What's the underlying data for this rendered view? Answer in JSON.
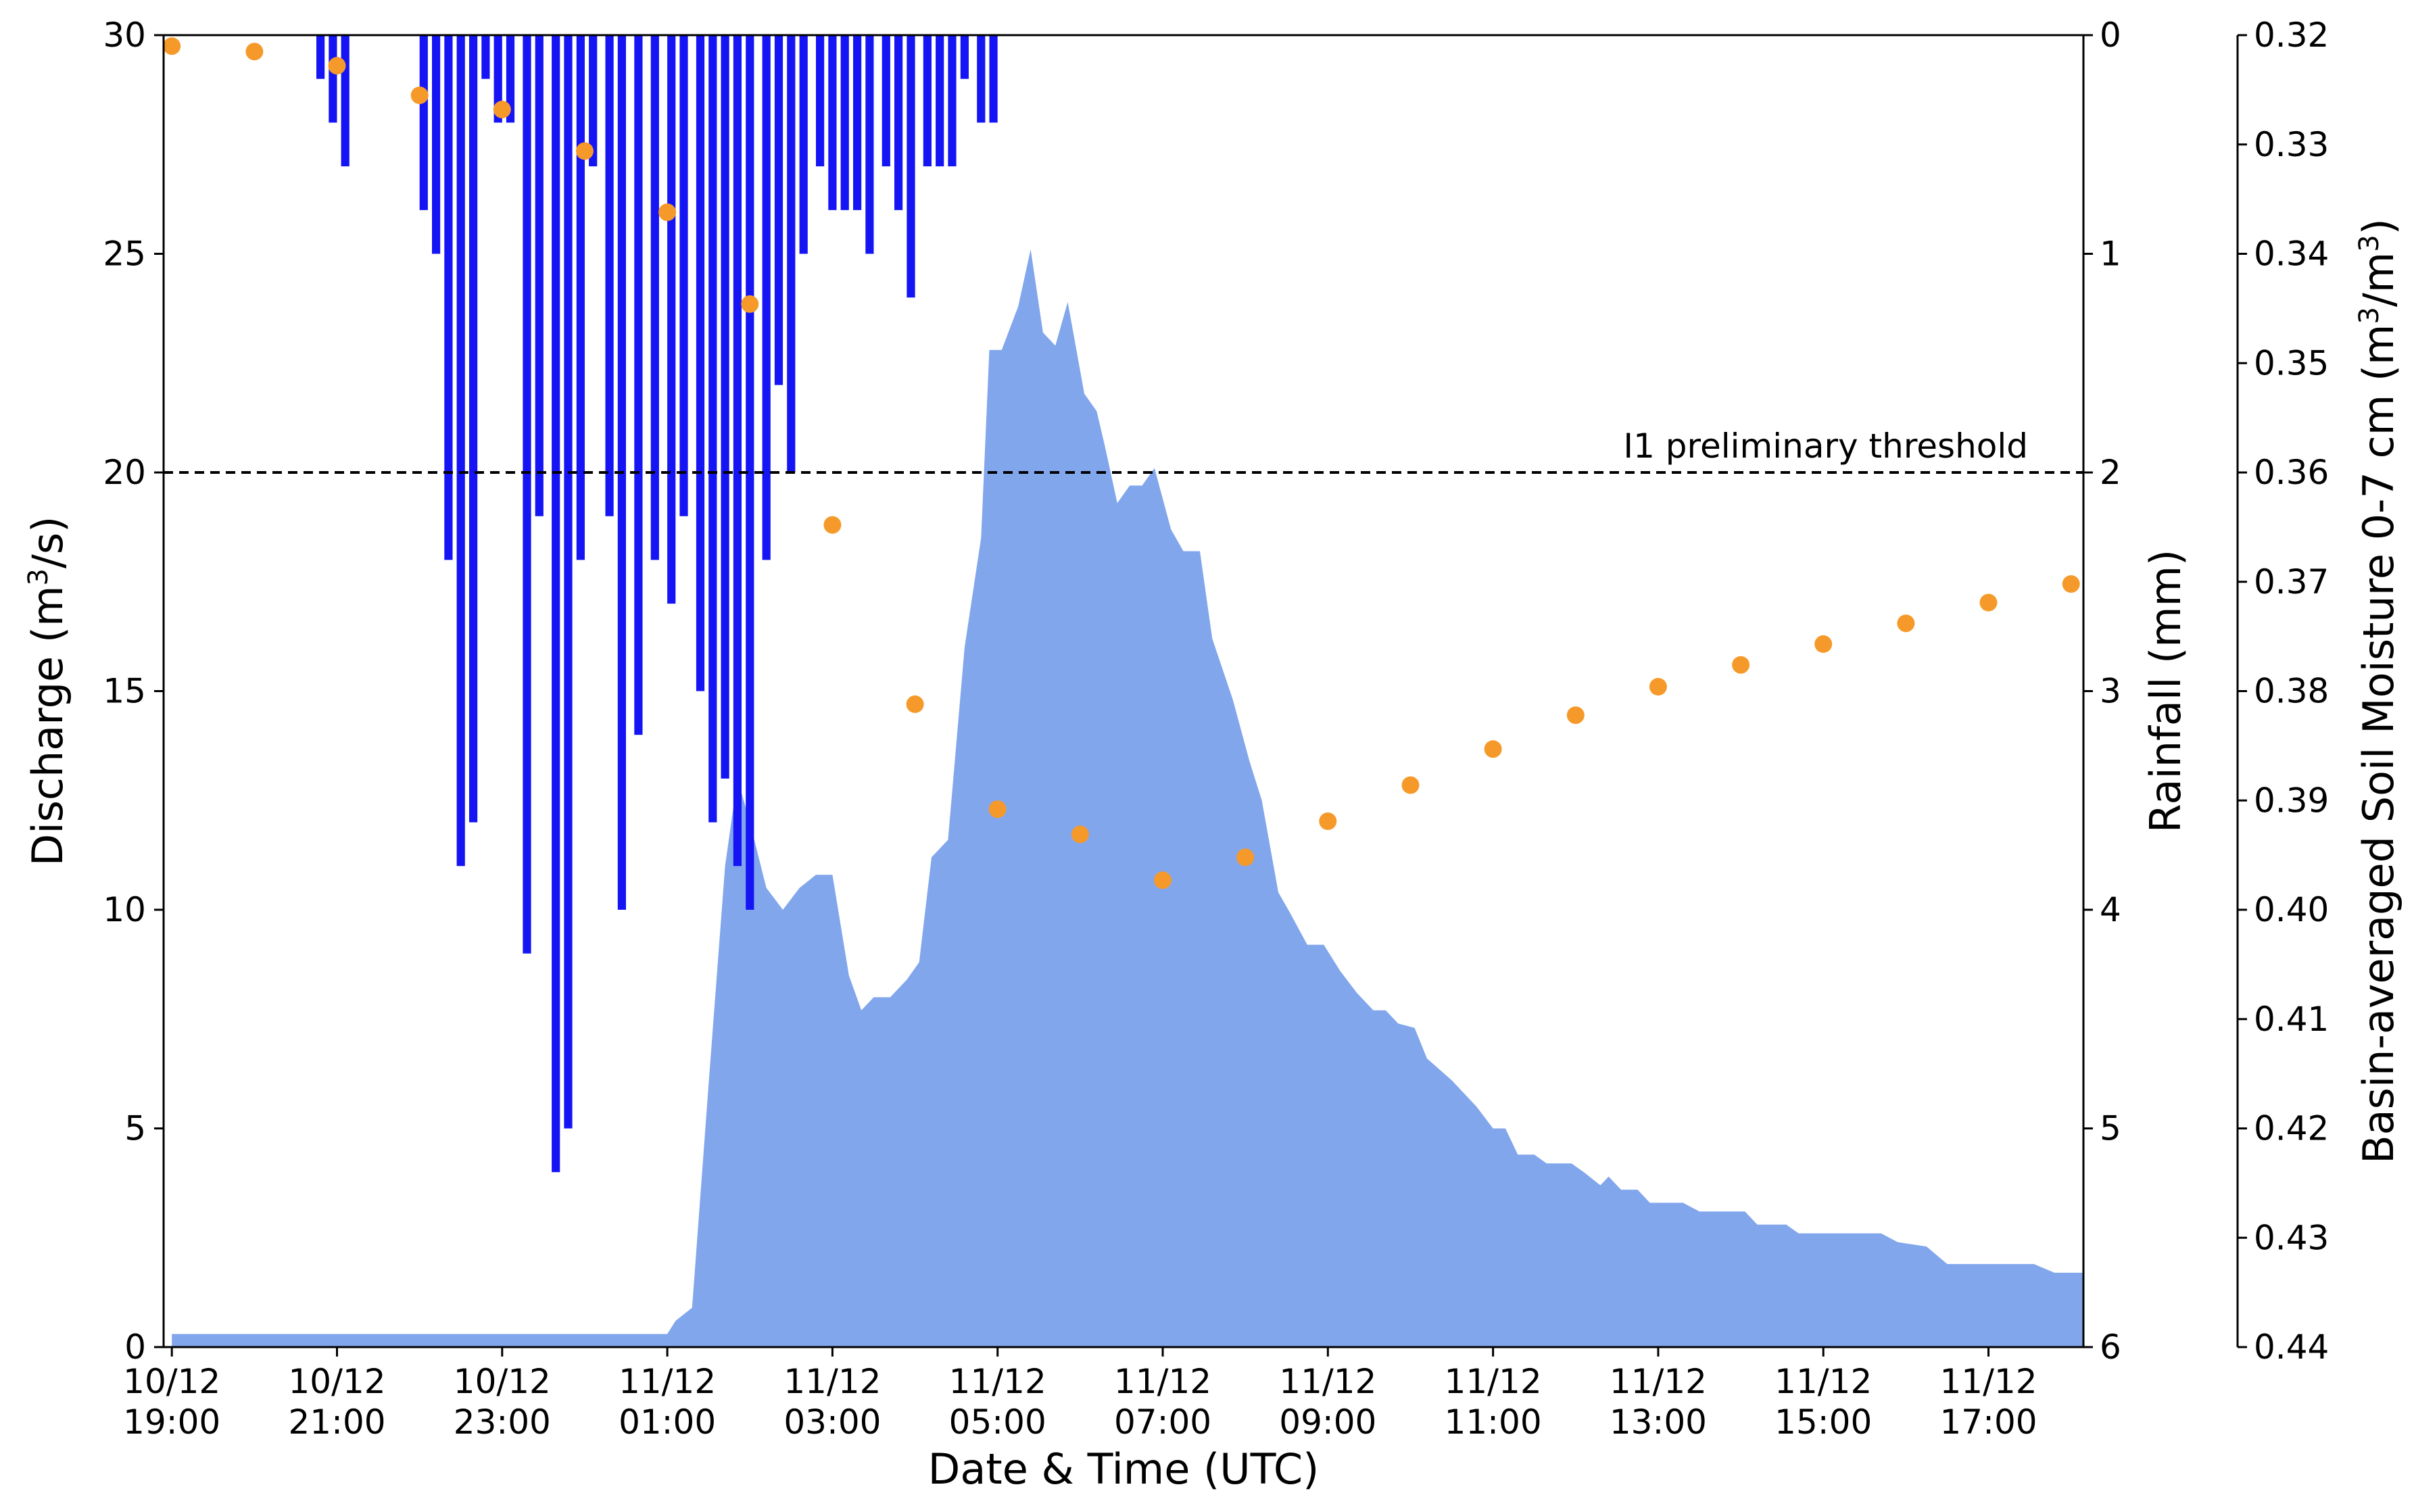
{
  "chart_data": {
    "type": "area",
    "xlabel": "Date & Time (UTC)",
    "x_ticks": [
      {
        "t": 0,
        "label": [
          "10/12",
          "19:00"
        ]
      },
      {
        "t": 2,
        "label": [
          "10/12",
          "21:00"
        ]
      },
      {
        "t": 4,
        "label": [
          "10/12",
          "23:00"
        ]
      },
      {
        "t": 6,
        "label": [
          "11/12",
          "01:00"
        ]
      },
      {
        "t": 8,
        "label": [
          "11/12",
          "03:00"
        ]
      },
      {
        "t": 10,
        "label": [
          "11/12",
          "05:00"
        ]
      },
      {
        "t": 12,
        "label": [
          "11/12",
          "07:00"
        ]
      },
      {
        "t": 14,
        "label": [
          "11/12",
          "09:00"
        ]
      },
      {
        "t": 16,
        "label": [
          "11/12",
          "11:00"
        ]
      },
      {
        "t": 18,
        "label": [
          "11/12",
          "13:00"
        ]
      },
      {
        "t": 20,
        "label": [
          "11/12",
          "15:00"
        ]
      },
      {
        "t": 22,
        "label": [
          "11/12",
          "17:00"
        ]
      }
    ],
    "xlim": [
      -0.1,
      23.15
    ],
    "discharge_axis": {
      "label": "Discharge (m3/s)",
      "label_parts": [
        "Discharge (m",
        "3",
        "/s)"
      ],
      "ylim": [
        0,
        30
      ],
      "ticks": [
        "0",
        "5",
        "10",
        "15",
        "20",
        "25",
        "30"
      ]
    },
    "rainfall_axis": {
      "label": "Rainfall (mm)",
      "ylim": [
        6,
        0
      ],
      "inverted": true,
      "ticks": [
        "0",
        "1",
        "2",
        "3",
        "4",
        "5",
        "6"
      ]
    },
    "soil_moisture_axis": {
      "label": "Basin-averaged Soil Moisture 0-7 cm (m3/m3)",
      "label_parts": [
        "Basin-averaged Soil Moisture 0-7 cm (m",
        "3",
        "/m",
        "3",
        ")"
      ],
      "ylim": [
        0.44,
        0.32
      ],
      "inverted": true,
      "ticks": [
        "0.32",
        "0.33",
        "0.34",
        "0.35",
        "0.36",
        "0.37",
        "0.38",
        "0.39",
        "0.40",
        "0.41",
        "0.42",
        "0.43",
        "0.44"
      ]
    },
    "threshold": {
      "label": "I1 preliminary threshold",
      "value": 20,
      "style": "dashed",
      "color": "#000000"
    },
    "discharge": {
      "color": "#81a6ec",
      "points": [
        [
          0,
          0.3
        ],
        [
          6,
          0.3
        ],
        [
          6.1,
          0.6
        ],
        [
          6.3,
          0.9
        ],
        [
          6.5,
          6
        ],
        [
          6.7,
          11
        ],
        [
          6.85,
          13
        ],
        [
          7,
          12
        ],
        [
          7.2,
          10.5
        ],
        [
          7.4,
          10
        ],
        [
          7.6,
          10.5
        ],
        [
          7.8,
          10.8
        ],
        [
          8,
          10.8
        ],
        [
          8.2,
          8.5
        ],
        [
          8.35,
          7.7
        ],
        [
          8.5,
          8
        ],
        [
          8.7,
          8
        ],
        [
          8.9,
          8.4
        ],
        [
          9.05,
          8.8
        ],
        [
          9.2,
          11.2
        ],
        [
          9.4,
          11.6
        ],
        [
          9.6,
          16
        ],
        [
          9.8,
          18.5
        ],
        [
          9.9,
          22.8
        ],
        [
          10.05,
          22.8
        ],
        [
          10.25,
          23.8
        ],
        [
          10.4,
          25.1
        ],
        [
          10.55,
          23.2
        ],
        [
          10.7,
          22.9
        ],
        [
          10.85,
          23.9
        ],
        [
          11.05,
          21.8
        ],
        [
          11.2,
          21.4
        ],
        [
          11.3,
          20.6
        ],
        [
          11.45,
          19.3
        ],
        [
          11.6,
          19.7
        ],
        [
          11.75,
          19.7
        ],
        [
          11.9,
          20.1
        ],
        [
          12.1,
          18.7
        ],
        [
          12.25,
          18.2
        ],
        [
          12.45,
          18.2
        ],
        [
          12.6,
          16.2
        ],
        [
          12.85,
          14.8
        ],
        [
          13.05,
          13.4
        ],
        [
          13.2,
          12.5
        ],
        [
          13.4,
          10.4
        ],
        [
          13.55,
          9.9
        ],
        [
          13.75,
          9.2
        ],
        [
          13.95,
          9.2
        ],
        [
          14.15,
          8.6
        ],
        [
          14.35,
          8.1
        ],
        [
          14.55,
          7.7
        ],
        [
          14.7,
          7.7
        ],
        [
          14.85,
          7.4
        ],
        [
          15.05,
          7.3
        ],
        [
          15.2,
          6.6
        ],
        [
          15.5,
          6.1
        ],
        [
          15.8,
          5.5
        ],
        [
          16,
          5
        ],
        [
          16.15,
          5
        ],
        [
          16.3,
          4.4
        ],
        [
          16.5,
          4.4
        ],
        [
          16.65,
          4.2
        ],
        [
          16.95,
          4.2
        ],
        [
          17.1,
          4
        ],
        [
          17.3,
          3.7
        ],
        [
          17.4,
          3.9
        ],
        [
          17.55,
          3.6
        ],
        [
          17.75,
          3.6
        ],
        [
          17.9,
          3.3
        ],
        [
          18.3,
          3.3
        ],
        [
          18.5,
          3.1
        ],
        [
          19.05,
          3.1
        ],
        [
          19.2,
          2.8
        ],
        [
          19.55,
          2.8
        ],
        [
          19.7,
          2.6
        ],
        [
          20.7,
          2.6
        ],
        [
          20.9,
          2.4
        ],
        [
          21.25,
          2.3
        ],
        [
          21.5,
          1.9
        ],
        [
          22.55,
          1.9
        ],
        [
          22.8,
          1.7
        ],
        [
          23.15,
          1.7
        ]
      ]
    },
    "rainfall": {
      "color": "#1414f5",
      "bar_width_hours": 0.1,
      "bars": [
        {
          "t": 1.8,
          "mm": 0.2
        },
        {
          "t": 1.95,
          "mm": 0.4
        },
        {
          "t": 2.1,
          "mm": 0.6
        },
        {
          "t": 3.05,
          "mm": 0.8
        },
        {
          "t": 3.2,
          "mm": 1.0
        },
        {
          "t": 3.35,
          "mm": 2.4
        },
        {
          "t": 3.5,
          "mm": 3.8
        },
        {
          "t": 3.65,
          "mm": 3.6
        },
        {
          "t": 3.8,
          "mm": 0.2
        },
        {
          "t": 3.95,
          "mm": 0.4
        },
        {
          "t": 4.1,
          "mm": 0.4
        },
        {
          "t": 4.3,
          "mm": 4.2
        },
        {
          "t": 4.45,
          "mm": 2.2
        },
        {
          "t": 4.65,
          "mm": 5.2
        },
        {
          "t": 4.8,
          "mm": 5.0
        },
        {
          "t": 4.95,
          "mm": 2.4
        },
        {
          "t": 5.1,
          "mm": 0.6
        },
        {
          "t": 5.3,
          "mm": 2.2
        },
        {
          "t": 5.45,
          "mm": 4.0
        },
        {
          "t": 5.65,
          "mm": 3.2
        },
        {
          "t": 5.85,
          "mm": 2.4
        },
        {
          "t": 6.05,
          "mm": 2.6
        },
        {
          "t": 6.2,
          "mm": 2.2
        },
        {
          "t": 6.4,
          "mm": 3.0
        },
        {
          "t": 6.55,
          "mm": 3.6
        },
        {
          "t": 6.7,
          "mm": 3.4
        },
        {
          "t": 6.85,
          "mm": 3.8
        },
        {
          "t": 7.0,
          "mm": 4.0
        },
        {
          "t": 7.2,
          "mm": 2.4
        },
        {
          "t": 7.35,
          "mm": 1.6
        },
        {
          "t": 7.5,
          "mm": 2.0
        },
        {
          "t": 7.65,
          "mm": 1.0
        },
        {
          "t": 7.85,
          "mm": 0.6
        },
        {
          "t": 8.0,
          "mm": 0.8
        },
        {
          "t": 8.15,
          "mm": 0.8
        },
        {
          "t": 8.3,
          "mm": 0.8
        },
        {
          "t": 8.45,
          "mm": 1.0
        },
        {
          "t": 8.65,
          "mm": 0.6
        },
        {
          "t": 8.8,
          "mm": 0.8
        },
        {
          "t": 8.95,
          "mm": 1.2
        },
        {
          "t": 9.15,
          "mm": 0.6
        },
        {
          "t": 9.3,
          "mm": 0.6
        },
        {
          "t": 9.45,
          "mm": 0.6
        },
        {
          "t": 9.6,
          "mm": 0.2
        },
        {
          "t": 9.8,
          "mm": 0.4
        },
        {
          "t": 9.95,
          "mm": 0.4
        }
      ]
    },
    "soil_moisture": {
      "color": "#f59a2a",
      "points": [
        [
          0,
          0.321
        ],
        [
          1,
          0.3215
        ],
        [
          2,
          0.3228
        ],
        [
          3,
          0.3255
        ],
        [
          4,
          0.3268
        ],
        [
          5,
          0.3306
        ],
        [
          6,
          0.3362
        ],
        [
          7,
          0.3446
        ],
        [
          8,
          0.3648
        ],
        [
          9,
          0.3812
        ],
        [
          10,
          0.3908
        ],
        [
          11,
          0.3931
        ],
        [
          12,
          0.3973
        ],
        [
          13,
          0.3952
        ],
        [
          14,
          0.3919
        ],
        [
          15,
          0.3886
        ],
        [
          16,
          0.3853
        ],
        [
          17,
          0.3822
        ],
        [
          18,
          0.3796
        ],
        [
          19,
          0.3776
        ],
        [
          20,
          0.3757
        ],
        [
          21,
          0.3738
        ],
        [
          22,
          0.3719
        ],
        [
          23,
          0.3702
        ]
      ]
    }
  }
}
